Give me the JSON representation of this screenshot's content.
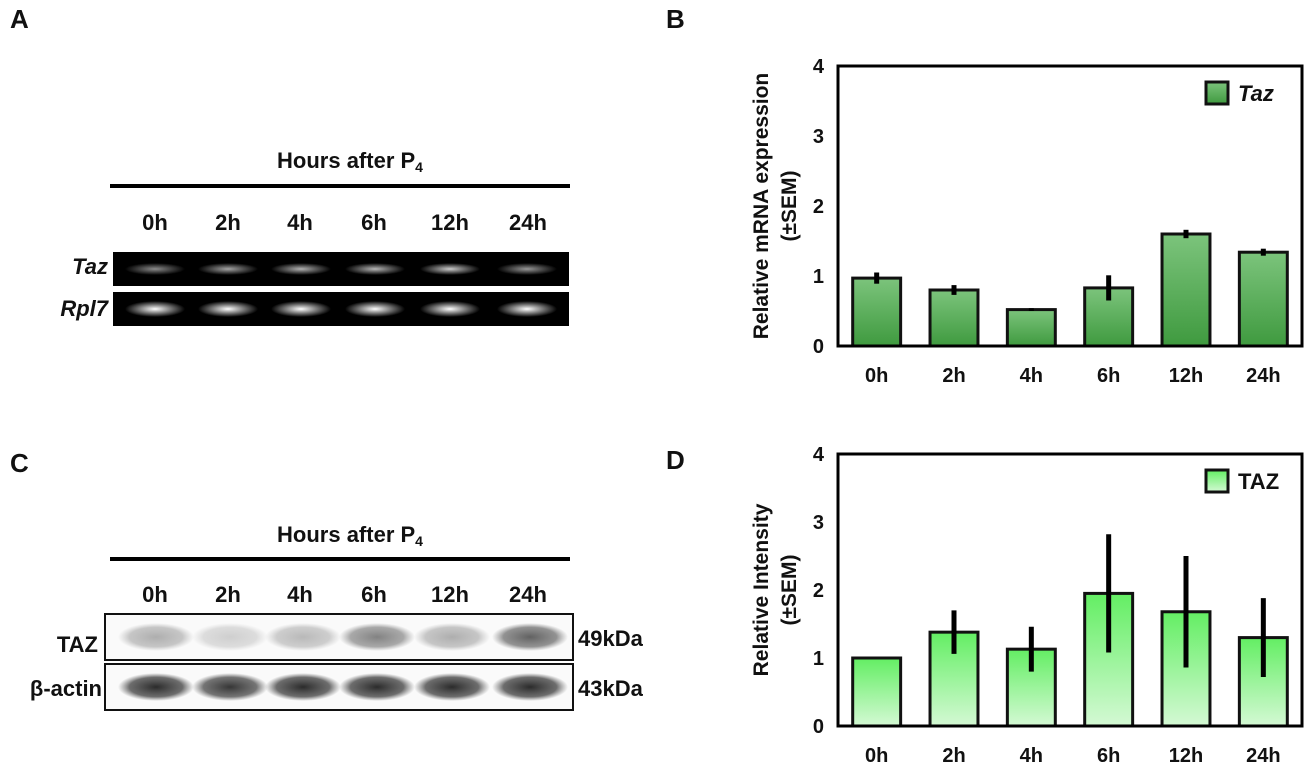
{
  "panels": {
    "A": "A",
    "B": "B",
    "C": "C",
    "D": "D"
  },
  "gel_A": {
    "header_main": "Hours after P",
    "header_sub": "4",
    "lanes": [
      "0h",
      "2h",
      "4h",
      "6h",
      "12h",
      "24h"
    ],
    "rows": [
      "Taz",
      "Rpl7"
    ],
    "taz_band_intensity": [
      0.55,
      0.65,
      0.7,
      0.72,
      0.8,
      0.6
    ],
    "rpl7_band_intensity": [
      1,
      1,
      1,
      1,
      1,
      1
    ]
  },
  "blot_C": {
    "header_main": "Hours after P",
    "header_sub": "4",
    "lanes": [
      "0h",
      "2h",
      "4h",
      "6h",
      "12h",
      "24h"
    ],
    "rows": [
      "TAZ",
      "β-actin"
    ],
    "sizes": [
      "49kDa",
      "43kDa"
    ],
    "taz_band_intensity": [
      0.35,
      0.2,
      0.3,
      0.55,
      0.35,
      0.7
    ],
    "actin_band_intensity": [
      0.95,
      0.9,
      0.95,
      0.95,
      0.95,
      0.95
    ]
  },
  "chart_data": [
    {
      "type": "bar",
      "categories": [
        "0h",
        "2h",
        "4h",
        "6h",
        "12h",
        "24h"
      ],
      "values": [
        0.97,
        0.8,
        0.52,
        0.83,
        1.6,
        1.34
      ],
      "errors": [
        0.08,
        0.07,
        0.02,
        0.18,
        0.06,
        0.05
      ],
      "series": [
        {
          "name": "Taz",
          "values": [
            0.97,
            0.8,
            0.52,
            0.83,
            1.6,
            1.34
          ]
        }
      ],
      "ylabel_line1": "Relative mRNA expression",
      "ylabel_line2": "(±SEM)",
      "yticks": [
        "0",
        "1",
        "2",
        "3",
        "4"
      ],
      "ylim": [
        0,
        4
      ],
      "legend": "top-right",
      "bar_color_top": "#7cc47c",
      "bar_color_bottom": "#3f9a3f"
    },
    {
      "type": "bar",
      "categories": [
        "0h",
        "2h",
        "4h",
        "6h",
        "12h",
        "24h"
      ],
      "values": [
        1.0,
        1.38,
        1.13,
        1.95,
        1.68,
        1.3
      ],
      "errors": [
        0.0,
        0.32,
        0.33,
        0.87,
        0.82,
        0.58
      ],
      "series": [
        {
          "name": "TAZ",
          "values": [
            1.0,
            1.38,
            1.13,
            1.95,
            1.68,
            1.3
          ]
        }
      ],
      "ylabel_line1": "Relative Intensity",
      "ylabel_line2": "(±SEM)",
      "yticks": [
        "0",
        "1",
        "2",
        "3",
        "4"
      ],
      "ylim": [
        0,
        4
      ],
      "legend": "top-right",
      "bar_color_top": "#63ee63",
      "bar_color_bottom": "#d4f9d4"
    }
  ]
}
